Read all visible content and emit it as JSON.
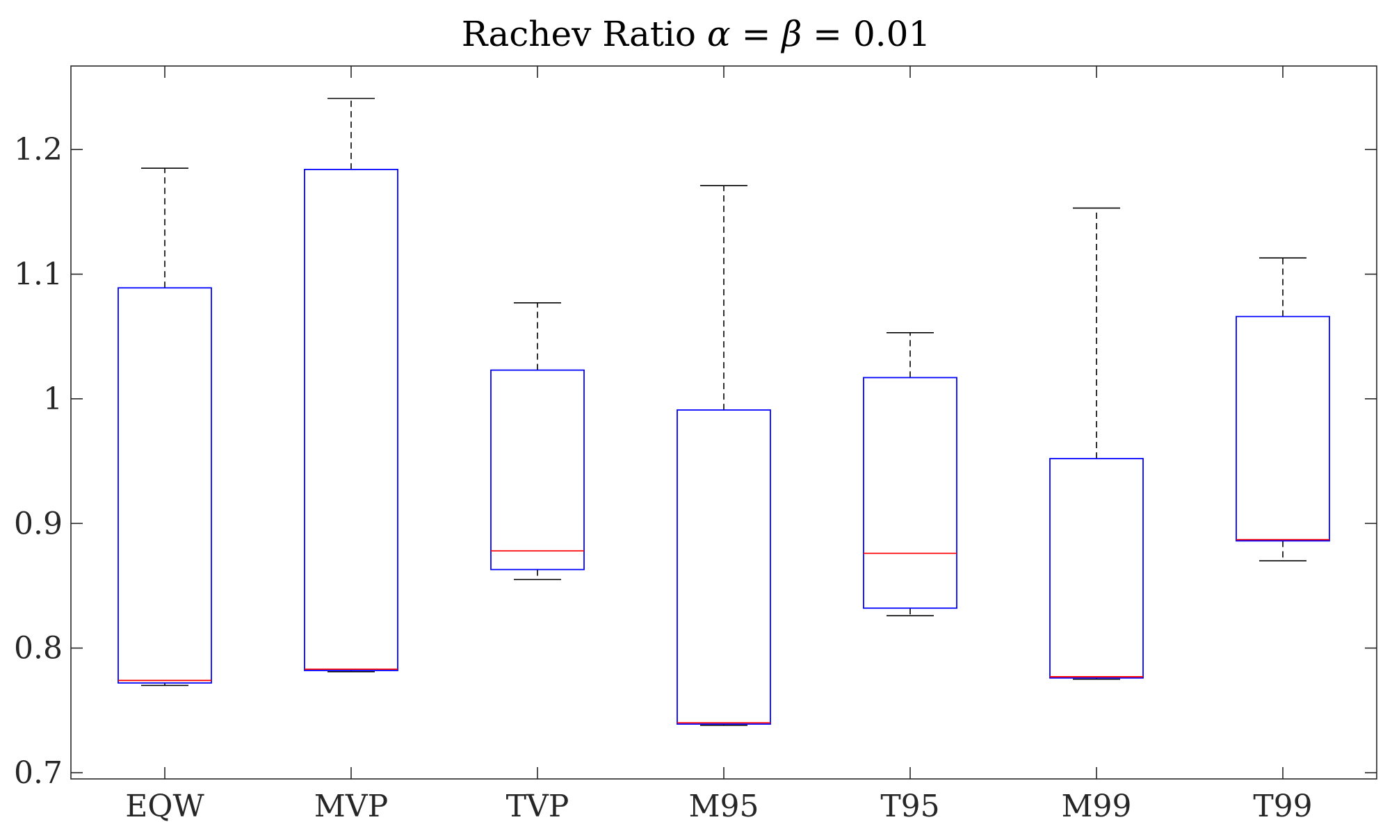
{
  "chart_data": {
    "type": "box",
    "title": "Rachev Ratio α = β = 0.01",
    "title_parts": {
      "prefix": "Rachev Ratio ",
      "alpha": "α",
      "eq1": " = ",
      "beta": "β",
      "eq2": " = ",
      "value": "0.01"
    },
    "xlabel": "",
    "ylabel": "",
    "ylim": [
      0.695,
      1.267
    ],
    "yticks": [
      0.7,
      0.8,
      0.9,
      1.0,
      1.1,
      1.2
    ],
    "ytick_labels": [
      "0.7",
      "0.8",
      "0.9",
      "1",
      "1.1",
      "1.2"
    ],
    "categories": [
      "EQW",
      "MVP",
      "TVP",
      "M95",
      "T95",
      "M99",
      "T99"
    ],
    "boxes": [
      {
        "name": "EQW",
        "whisker_low": 0.77,
        "q1": 0.772,
        "median": 0.774,
        "q3": 1.089,
        "whisker_high": 1.185
      },
      {
        "name": "MVP",
        "whisker_low": 0.781,
        "q1": 0.782,
        "median": 0.783,
        "q3": 1.184,
        "whisker_high": 1.241
      },
      {
        "name": "TVP",
        "whisker_low": 0.855,
        "q1": 0.863,
        "median": 0.878,
        "q3": 1.023,
        "whisker_high": 1.077
      },
      {
        "name": "M95",
        "whisker_low": 0.738,
        "q1": 0.739,
        "median": 0.74,
        "q3": 0.991,
        "whisker_high": 1.171
      },
      {
        "name": "T95",
        "whisker_low": 0.826,
        "q1": 0.832,
        "median": 0.876,
        "q3": 1.017,
        "whisker_high": 1.053
      },
      {
        "name": "M99",
        "whisker_low": 0.775,
        "q1": 0.776,
        "median": 0.777,
        "q3": 0.952,
        "whisker_high": 1.153
      },
      {
        "name": "T99",
        "whisker_low": 0.87,
        "q1": 0.886,
        "median": 0.887,
        "q3": 1.066,
        "whisker_high": 1.113
      }
    ],
    "colors": {
      "box": "#0000ff",
      "median": "#ff0000",
      "whisker": "#000000",
      "axis": "#262626"
    }
  }
}
